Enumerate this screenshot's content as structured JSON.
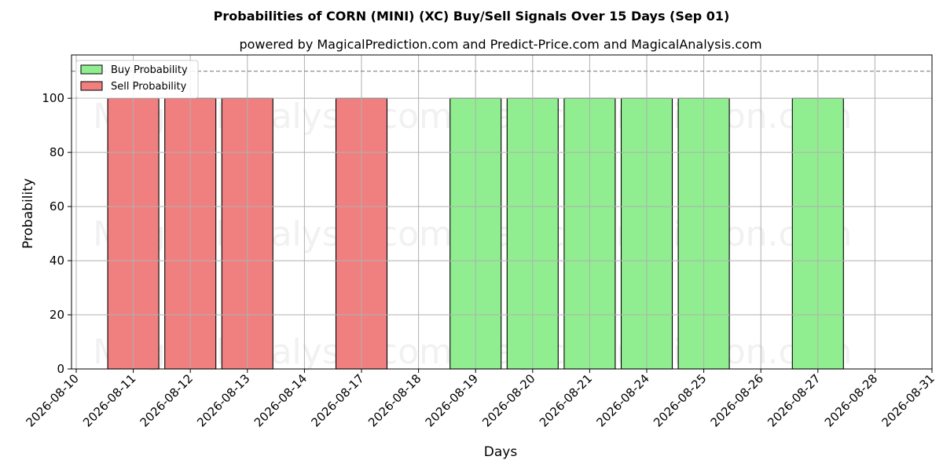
{
  "chart_data": {
    "type": "bar",
    "title": "Probabilities of CORN (MINI) (XC) Buy/Sell Signals Over 15 Days (Sep 01)",
    "subtitle": "powered by MagicalPrediction.com and Predict-Price.com and MagicalAnalysis.com",
    "xlabel": "Days",
    "ylabel": "Probability",
    "ylim": [
      0,
      116
    ],
    "yticks": [
      0,
      20,
      40,
      60,
      80,
      100
    ],
    "threshold_line": 110,
    "grid": true,
    "legend_position": "top-left",
    "categories": [
      "2026-08-10",
      "2026-08-11",
      "2026-08-12",
      "2026-08-13",
      "2026-08-14",
      "2026-08-17",
      "2026-08-18",
      "2026-08-19",
      "2026-08-20",
      "2026-08-21",
      "2026-08-24",
      "2026-08-25",
      "2026-08-26",
      "2026-08-27",
      "2026-08-28",
      "2026-08-31"
    ],
    "series": [
      {
        "name": "Buy Probability",
        "color": "#90ee90",
        "values": [
          0,
          0,
          0,
          0,
          0,
          0,
          0,
          100,
          100,
          100,
          100,
          100,
          0,
          100,
          0,
          0
        ]
      },
      {
        "name": "Sell Probability",
        "color": "#f08080",
        "values": [
          0,
          100,
          100,
          100,
          0,
          100,
          0,
          0,
          0,
          0,
          0,
          0,
          0,
          0,
          0,
          0
        ]
      }
    ],
    "watermarks": [
      "MagicalAnalysis.com",
      "MagicalPrediction.com"
    ]
  }
}
